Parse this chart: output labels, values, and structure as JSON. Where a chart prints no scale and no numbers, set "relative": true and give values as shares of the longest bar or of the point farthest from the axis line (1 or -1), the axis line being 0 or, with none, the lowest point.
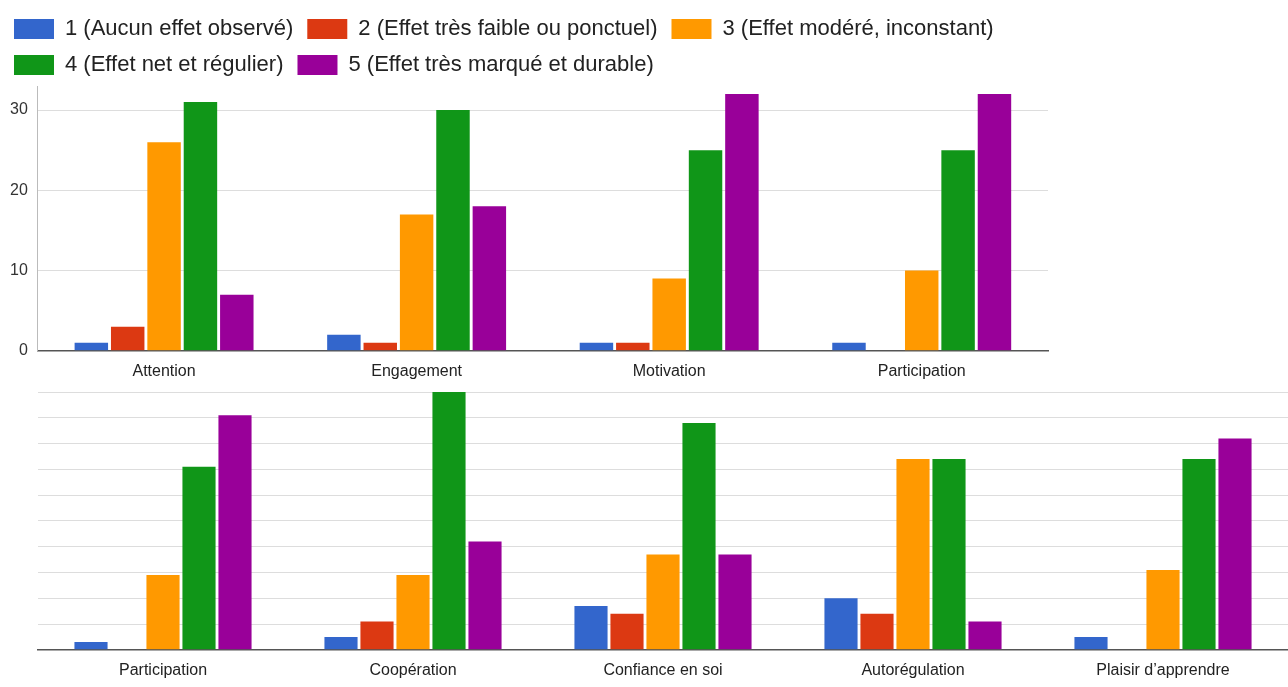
{
  "chart_data": [
    {
      "type": "bar",
      "categories": [
        "Attention",
        "Engagement",
        "Motivation",
        "Participation"
      ],
      "series": [
        {
          "name": "1 (Aucun effet observé)",
          "color": "#3366cc",
          "values": [
            1,
            2,
            1,
            1
          ]
        },
        {
          "name": "2 (Effet très faible ou ponctuel)",
          "color": "#dc3912",
          "values": [
            3,
            1,
            1,
            0
          ]
        },
        {
          "name": "3 (Effet modéré, inconstant)",
          "color": "#ff9900",
          "values": [
            26,
            17,
            9,
            10
          ]
        },
        {
          "name": "4 (Effet net et régulier)",
          "color": "#109618",
          "values": [
            31,
            30,
            25,
            25
          ]
        },
        {
          "name": "5 (Effet très marqué et durable)",
          "color": "#990099",
          "values": [
            7,
            18,
            32,
            32
          ]
        }
      ],
      "ylim": [
        0,
        33
      ],
      "yticks": [
        0,
        10,
        20,
        30
      ],
      "grid": true,
      "legend": "top left"
    },
    {
      "type": "bar",
      "relative": true,
      "categories": [
        "Participation",
        "Coopération",
        "Confiance en soi",
        "Autorégulation",
        "Plaisir d’apprendre"
      ],
      "series": [
        {
          "color": "#3366cc",
          "values": [
            0.03,
            0.05,
            0.17,
            0.2,
            0.05
          ]
        },
        {
          "color": "#dc3912",
          "values": [
            0,
            0.11,
            0.14,
            0.14,
            0
          ]
        },
        {
          "color": "#ff9900",
          "values": [
            0.29,
            0.29,
            0.37,
            0.74,
            0.31
          ]
        },
        {
          "color": "#109618",
          "values": [
            0.71,
            1,
            0.88,
            0.74,
            0.74
          ]
        },
        {
          "color": "#990099",
          "values": [
            0.91,
            0.42,
            0.37,
            0.11,
            0.82
          ]
        }
      ],
      "grid": true
    }
  ]
}
